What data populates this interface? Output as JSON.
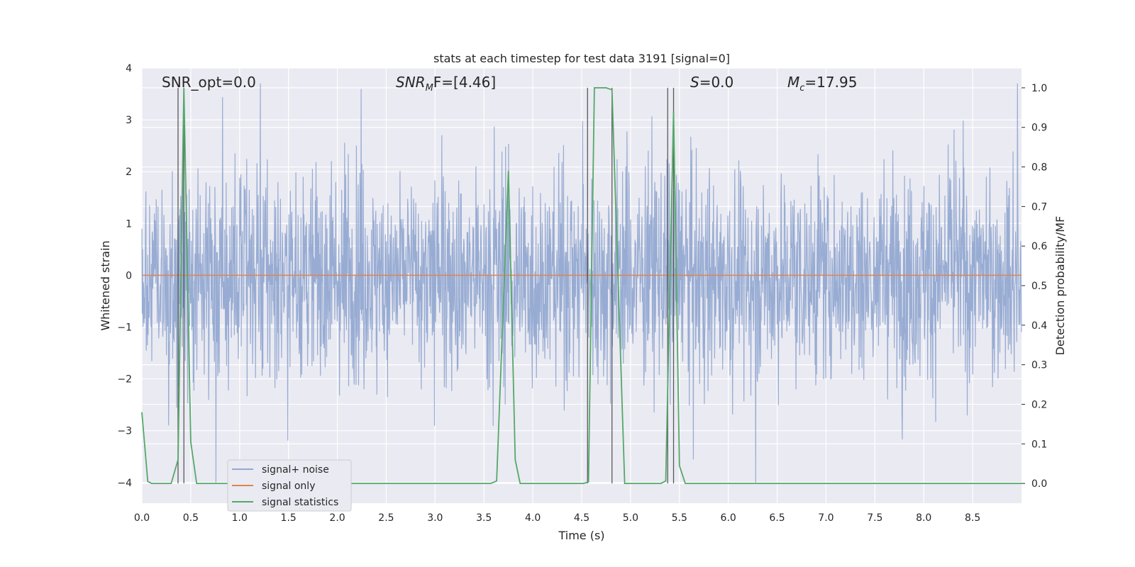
{
  "chart_data": {
    "type": "line",
    "title": "stats at each timestep for test data 3191 [signal=0]",
    "xlabel": "Time (s)",
    "ylabel_left": "Whitened strain",
    "ylabel_right": "Detection probability/MF",
    "xlim": [
      0,
      9
    ],
    "ylim_left": [
      -4.4,
      4.0
    ],
    "ylim_right": [
      -0.05,
      1.05
    ],
    "x_ticks": [
      "0.0",
      "0.5",
      "1.0",
      "1.5",
      "2.0",
      "2.5",
      "3.0",
      "3.5",
      "4.0",
      "4.5",
      "5.0",
      "5.5",
      "6.0",
      "6.5",
      "7.0",
      "7.5",
      "8.0",
      "8.5"
    ],
    "y_left_ticks": [
      "4",
      "3",
      "2",
      "1",
      "0",
      "−1",
      "−2",
      "−3",
      "−4"
    ],
    "y_right_ticks": [
      "1.0",
      "0.9",
      "0.8",
      "0.7",
      "0.6",
      "0.5",
      "0.4",
      "0.3",
      "0.2",
      "0.1",
      "0.0"
    ],
    "grid": true,
    "legend_position": "lower-left",
    "annotations": {
      "snr_opt": "SNR_opt=0.0",
      "snr_mf_main": "SNR",
      "snr_mf_sub": "M",
      "snr_mf_rest": "F=[4.46]",
      "s_main": "S",
      "s_rest": "=0.0",
      "mc_main": "M",
      "mc_sub": "c",
      "mc_rest": "=17.95"
    },
    "vertical_lines_x": [
      0.37,
      0.43,
      4.56,
      4.81,
      5.38,
      5.44
    ],
    "series": [
      {
        "name": "signal+ noise",
        "color": "#94a9d1",
        "description_y_range": [
          -4.0,
          3.7
        ],
        "std": 1.0
      },
      {
        "name": "signal only",
        "color": "#dd8452",
        "x": [
          0,
          9
        ],
        "y": [
          0,
          0
        ]
      },
      {
        "name": "signal statistics",
        "color": "#55a868",
        "axis": "right",
        "x": [
          0.0,
          0.06,
          0.1,
          0.3,
          0.37,
          0.43,
          0.5,
          0.56,
          3.57,
          3.63,
          3.75,
          3.82,
          3.87,
          4.52,
          4.57,
          4.63,
          4.75,
          4.81,
          4.94,
          5.31,
          5.36,
          5.44,
          5.5,
          5.56,
          9.0
        ],
        "y": [
          0.18,
          0.005,
          0.0,
          0.0,
          0.06,
          1.0,
          0.105,
          0.0,
          0.0,
          0.006,
          0.79,
          0.06,
          0.0,
          0.0,
          0.004,
          1.0,
          1.0,
          0.995,
          0.0,
          0.0,
          0.006,
          0.94,
          0.045,
          0.0,
          0.0
        ]
      }
    ]
  }
}
